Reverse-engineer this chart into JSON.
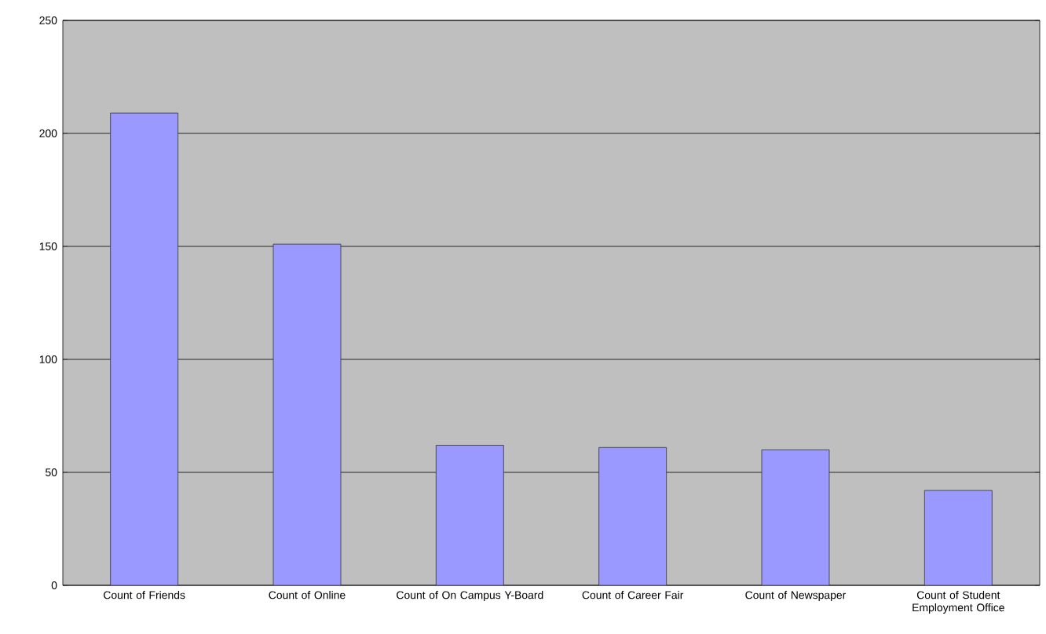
{
  "chart_data": {
    "type": "bar",
    "categories": [
      "Count of Friends",
      "Count of Online",
      "Count of On Campus Y-Board",
      "Count of Career Fair",
      "Count of Newspaper",
      "Count of Student Employment Office"
    ],
    "values": [
      209,
      151,
      62,
      61,
      60,
      42
    ],
    "color": "#9999ff",
    "ylim": [
      0,
      250
    ],
    "yticks": [
      0,
      50,
      100,
      150,
      200,
      250
    ],
    "grid": "y"
  }
}
